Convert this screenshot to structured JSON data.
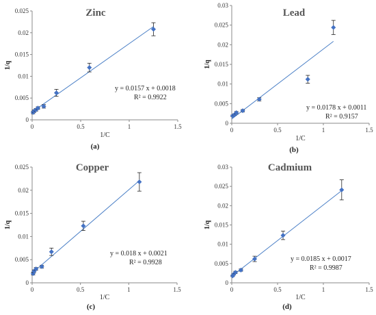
{
  "chart_data": [
    {
      "type": "scatter",
      "title": "Zinc",
      "xlabel": "1/C",
      "ylabel": "1/q",
      "xlim": [
        0,
        1.5
      ],
      "ylim": [
        0,
        0.025
      ],
      "xticks": [
        "0",
        "0.5",
        "1",
        "1.5"
      ],
      "yticks": [
        "0",
        "0.005",
        "0.01",
        "0.015",
        "0.02",
        "0.025"
      ],
      "points": [
        {
          "x": 0.01,
          "y": 0.0017,
          "err": 0.0003
        },
        {
          "x": 0.02,
          "y": 0.002,
          "err": 0.0003
        },
        {
          "x": 0.04,
          "y": 0.0023,
          "err": 0.0003
        },
        {
          "x": 0.06,
          "y": 0.0027,
          "err": 0.0003
        },
        {
          "x": 0.12,
          "y": 0.0031,
          "err": 0.0004
        },
        {
          "x": 0.25,
          "y": 0.0062,
          "err": 0.0008
        },
        {
          "x": 0.59,
          "y": 0.012,
          "err": 0.001
        },
        {
          "x": 1.25,
          "y": 0.0208,
          "err": 0.0015
        }
      ],
      "fit": {
        "slope": 0.0157,
        "intercept": 0.0018,
        "x_range": [
          0,
          1.25
        ]
      },
      "equation": "y = 0.0157 x + 0.0018",
      "r2": "R² = 0.9922",
      "caption": "(a)"
    },
    {
      "type": "scatter",
      "title": "Lead",
      "xlabel": "1/C",
      "ylabel": "1/q",
      "xlim": [
        0,
        1.5
      ],
      "ylim": [
        0,
        0.03
      ],
      "xticks": [
        "0",
        "0.5",
        "1",
        "1.5"
      ],
      "yticks": [
        "0",
        "0.005",
        "0.01",
        "0.015",
        "0.02",
        "0.025",
        "0.03"
      ],
      "points": [
        {
          "x": 0.01,
          "y": 0.0019,
          "err": 0.0002
        },
        {
          "x": 0.03,
          "y": 0.0022,
          "err": 0.0002
        },
        {
          "x": 0.05,
          "y": 0.0027,
          "err": 0.0003
        },
        {
          "x": 0.12,
          "y": 0.0032,
          "err": 0.0003
        },
        {
          "x": 0.3,
          "y": 0.0061,
          "err": 0.0004
        },
        {
          "x": 0.83,
          "y": 0.0112,
          "err": 0.001
        },
        {
          "x": 1.11,
          "y": 0.0244,
          "err": 0.0018
        }
      ],
      "fit": {
        "slope": 0.0178,
        "intercept": 0.0011,
        "x_range": [
          0,
          1.11
        ]
      },
      "equation": "y = 0.0178 x + 0.0011",
      "r2": "R² = 0.9157",
      "caption": "(b)"
    },
    {
      "type": "scatter",
      "title": "Copper",
      "xlabel": "1/C",
      "ylabel": "1/q",
      "xlim": [
        0,
        1.5
      ],
      "ylim": [
        0,
        0.025
      ],
      "xticks": [
        "0",
        "0.5",
        "1",
        "1.5"
      ],
      "yticks": [
        "0",
        "0.005",
        "0.01",
        "0.015",
        "0.02",
        "0.025"
      ],
      "points": [
        {
          "x": 0.01,
          "y": 0.002,
          "err": 0.0003
        },
        {
          "x": 0.02,
          "y": 0.0025,
          "err": 0.0003
        },
        {
          "x": 0.04,
          "y": 0.003,
          "err": 0.0003
        },
        {
          "x": 0.1,
          "y": 0.0035,
          "err": 0.0003
        },
        {
          "x": 0.2,
          "y": 0.0067,
          "err": 0.0008
        },
        {
          "x": 0.53,
          "y": 0.0123,
          "err": 0.001
        },
        {
          "x": 1.11,
          "y": 0.0218,
          "err": 0.002
        }
      ],
      "fit": {
        "slope": 0.018,
        "intercept": 0.0021,
        "x_range": [
          0,
          1.11
        ]
      },
      "equation": "y = 0.018 x + 0.0021",
      "r2": "R² = 0.9928",
      "caption": "(c)"
    },
    {
      "type": "scatter",
      "title": "Cadmium",
      "xlabel": "1/C",
      "ylabel": "1/q",
      "xlim": [
        0,
        1.5
      ],
      "ylim": [
        0,
        0.03
      ],
      "xticks": [
        "0",
        "0.5",
        "1",
        "1.5"
      ],
      "yticks": [
        "0",
        "0.005",
        "0.01",
        "0.015",
        "0.02",
        "0.025",
        "0.03"
      ],
      "points": [
        {
          "x": 0.01,
          "y": 0.0018,
          "err": 0.0002
        },
        {
          "x": 0.02,
          "y": 0.0022,
          "err": 0.0002
        },
        {
          "x": 0.04,
          "y": 0.0027,
          "err": 0.0003
        },
        {
          "x": 0.1,
          "y": 0.0033,
          "err": 0.0003
        },
        {
          "x": 0.25,
          "y": 0.0062,
          "err": 0.0007
        },
        {
          "x": 0.56,
          "y": 0.0123,
          "err": 0.0011
        },
        {
          "x": 1.2,
          "y": 0.0241,
          "err": 0.0026
        }
      ],
      "fit": {
        "slope": 0.0185,
        "intercept": 0.0017,
        "x_range": [
          0,
          1.2
        ]
      },
      "equation": "y = 0.0185 x + 0.0017",
      "r2": "R² = 0.9987",
      "caption": "(d)"
    }
  ],
  "colors": {
    "marker": "#4472c4",
    "line": "#4a7fc6",
    "axis": "#888888",
    "title": "#555555"
  }
}
